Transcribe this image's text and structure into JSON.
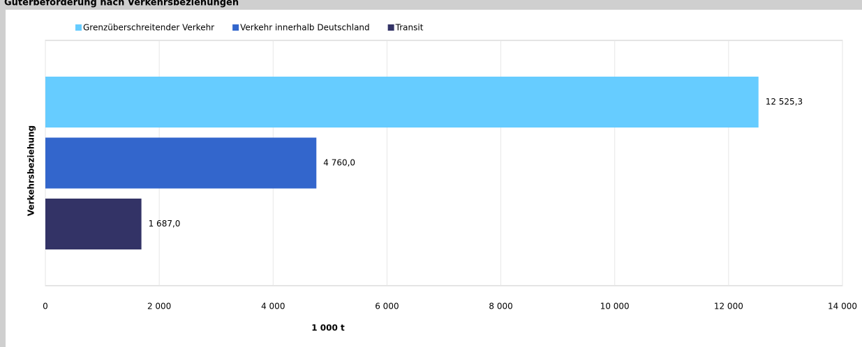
{
  "chart_data": {
    "type": "hbar",
    "title": "Güterbeförderung nach Verkehrsbeziehungen",
    "xlabel": "1 000 t",
    "ylabel": "Verkehrsbeziehung",
    "series": [
      {
        "name": "Grenzüberschreitender Verkehr",
        "color": "#66ccff",
        "values": [
          12525.3
        ],
        "value_labels": [
          "12 525,3"
        ]
      },
      {
        "name": "Verkehr innerhalb Deutschland",
        "color": "#3366cc",
        "values": [
          4760.0
        ],
        "value_labels": [
          "4 760,0"
        ]
      },
      {
        "name": "Transit",
        "color": "#333366",
        "values": [
          1687.0
        ],
        "value_labels": [
          "1 687,0"
        ]
      }
    ],
    "xlim": [
      0,
      14000
    ],
    "xticks": [
      0,
      {
        "value": 2000,
        "label": "2 000"
      },
      {
        "value": 4000,
        "label": "4 000"
      },
      {
        "value": 6000,
        "label": "6 000"
      },
      {
        "value": 8000,
        "label": "8 000"
      },
      {
        "value": 10000,
        "label": "10 000"
      },
      {
        "value": 12000,
        "label": "12 000"
      },
      {
        "value": 14000,
        "label": "14 000"
      }
    ],
    "grid": true,
    "legend": "top"
  }
}
